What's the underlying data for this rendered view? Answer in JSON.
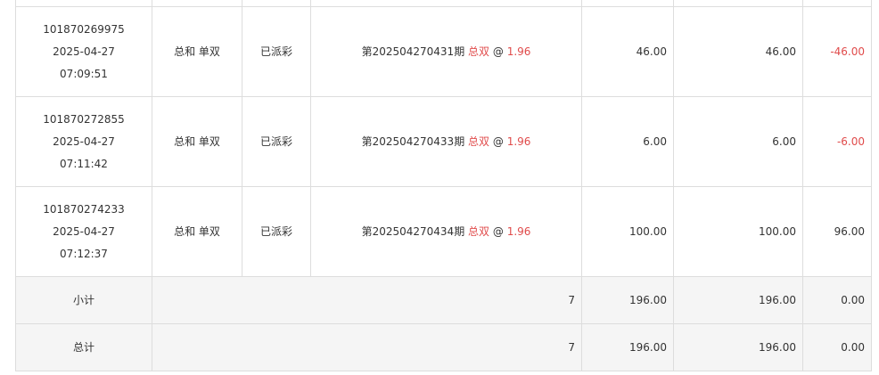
{
  "rows": [
    {
      "id": "101870269975",
      "date": "2025-04-27",
      "time": "07:09:51",
      "play": "总和 单双",
      "status": "已派彩",
      "issue": "第202504270431期",
      "pick": "总双",
      "at": "@",
      "odds": "1.96",
      "amount": "46.00",
      "valid": "46.00",
      "result": "-46.00",
      "negative": true
    },
    {
      "id": "101870272855",
      "date": "2025-04-27",
      "time": "07:11:42",
      "play": "总和 单双",
      "status": "已派彩",
      "issue": "第202504270433期",
      "pick": "总双",
      "at": "@",
      "odds": "1.96",
      "amount": "6.00",
      "valid": "6.00",
      "result": "-6.00",
      "negative": true
    },
    {
      "id": "101870274233",
      "date": "2025-04-27",
      "time": "07:12:37",
      "play": "总和 单双",
      "status": "已派彩",
      "issue": "第202504270434期",
      "pick": "总双",
      "at": "@",
      "odds": "1.96",
      "amount": "100.00",
      "valid": "100.00",
      "result": "96.00",
      "negative": false
    }
  ],
  "subtotal": {
    "label": "小计",
    "count": "7",
    "amount": "196.00",
    "valid": "196.00",
    "result": "0.00"
  },
  "total": {
    "label": "总计",
    "count": "7",
    "amount": "196.00",
    "valid": "196.00",
    "result": "0.00"
  },
  "colors": {
    "accent_red": "#e04b4b",
    "summary_bg": "#f5f5f5",
    "border": "#dddddd"
  }
}
